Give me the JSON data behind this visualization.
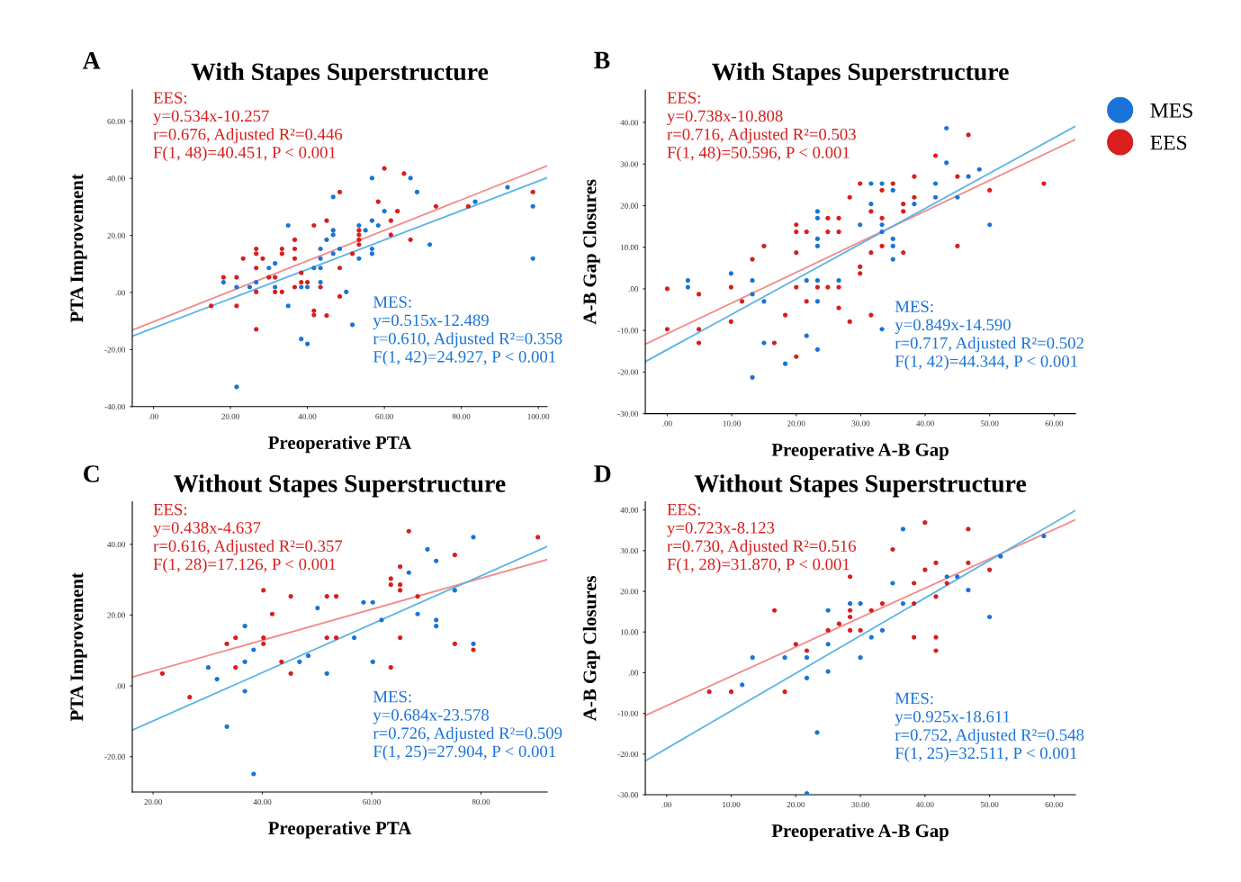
{
  "chart_data": [
    {
      "type": "scatter",
      "title": "With Stapes Superstructure",
      "xlabel": "Preoperative PTA",
      "ylabel": "PTA Improvement",
      "marker": "circle",
      "grid": false,
      "xlim": [
        -5.5,
        102.3
      ],
      "ylim": [
        -40,
        71
      ],
      "xticks": [
        {
          "value": 0,
          "label": ".00"
        },
        {
          "value": 20,
          "label": "20.00"
        },
        {
          "value": 40,
          "label": "40.00"
        },
        {
          "value": 60,
          "label": "60.00"
        },
        {
          "value": 80,
          "label": "80.00"
        },
        {
          "value": 100,
          "label": "100.00"
        }
      ],
      "yticks": [
        {
          "value": -40,
          "label": "-40.00"
        },
        {
          "value": -20,
          "label": "-20.00"
        },
        {
          "value": 0,
          "label": ".00"
        },
        {
          "value": 20,
          "label": "20.00"
        },
        {
          "value": 40,
          "label": "40.00"
        },
        {
          "value": 60,
          "label": "60.00"
        }
      ],
      "annotations": [
        "A",
        "EES:\ny=0.534x-10.257\nr=0.676, Adjusted R²=0.446\nF(1, 48)=40.451, P < 0.001",
        "MES:\ny=0.515x-12.489\nr=0.610, Adjusted R²=0.358\nF(1, 42)=24.927, P < 0.001"
      ],
      "series": [
        {
          "color": "#d81e1e",
          "x": [
            15.0,
            18.2,
            21.6,
            21.6,
            23.3,
            26.7,
            26.7,
            26.7,
            26.7,
            26.7,
            28.4,
            30.0,
            31.6,
            31.6,
            33.4,
            33.4,
            33.4,
            36.7,
            36.7,
            36.7,
            36.7,
            38.4,
            38.4,
            40.0,
            41.7,
            41.7,
            41.7,
            43.4,
            45.0,
            45.0,
            48.4,
            48.4,
            48.4,
            51.7,
            53.4,
            53.4,
            53.4,
            53.4,
            58.4,
            60.0,
            61.7,
            61.7,
            63.4,
            65.1,
            66.8,
            73.4,
            81.8,
            98.6
          ],
          "values": [
            -4.7,
            5.3,
            5.3,
            -4.7,
            11.9,
            15.3,
            13.6,
            8.6,
            0.2,
            -12.9,
            11.9,
            5.3,
            5.3,
            0.2,
            15.3,
            13.6,
            0.2,
            18.5,
            15.3,
            11.9,
            1.9,
            6.9,
            3.6,
            3.6,
            23.5,
            -6.4,
            -7.9,
            1.9,
            25.2,
            -8.1,
            35.2,
            8.6,
            -1.4,
            13.6,
            21.8,
            20.2,
            18.5,
            16.8,
            31.8,
            43.5,
            25.2,
            20.2,
            28.5,
            41.7,
            18.5,
            30.2,
            30.2,
            35.2
          ]
        },
        {
          "color": "#1a73d9",
          "x": [
            18.2,
            21.6,
            25.0,
            26.7,
            30.0,
            31.6,
            31.6,
            35.0,
            35.0,
            38.4,
            38.4,
            40.0,
            40.0,
            41.7,
            43.4,
            43.4,
            43.4,
            43.4,
            45.0,
            46.7,
            46.7,
            46.7,
            46.7,
            48.4,
            50.1,
            51.7,
            53.4,
            53.4,
            55.1,
            56.8,
            56.8,
            56.8,
            56.8,
            58.4,
            60.0,
            66.8,
            68.5,
            71.8,
            83.6,
            92.0,
            98.6,
            98.6,
            21.6
          ],
          "values": [
            3.6,
            1.9,
            1.9,
            3.6,
            8.6,
            10.2,
            1.9,
            23.5,
            -4.7,
            1.9,
            -16.3,
            1.9,
            -18.0,
            8.6,
            15.3,
            11.9,
            8.6,
            3.6,
            18.5,
            33.5,
            21.8,
            20.2,
            13.6,
            15.3,
            0.2,
            -11.3,
            23.5,
            11.9,
            21.8,
            40.1,
            25.2,
            15.3,
            13.6,
            23.5,
            28.5,
            40.1,
            35.2,
            16.8,
            31.8,
            36.9,
            30.2,
            11.9,
            -33.1
          ]
        },
        {
          "type": "line",
          "marker": "none",
          "color": "#f28b8b",
          "x": [
            -5.5,
            102.3
          ],
          "values": [
            -13.2,
            44.4
          ]
        },
        {
          "type": "line",
          "marker": "none",
          "color": "#5ab4e6",
          "x": [
            -5.5,
            102.3
          ],
          "values": [
            -15.3,
            40.2
          ]
        }
      ]
    },
    {
      "type": "scatter",
      "title": "With Stapes Superstructure",
      "xlabel": "Preoperative A-B Gap",
      "ylabel": "A-B Gap Closures",
      "marker": "circle",
      "grid": false,
      "legend": "right",
      "xlim": [
        -3.4,
        63.3
      ],
      "ylim": [
        -30,
        47.8
      ],
      "xticks": [
        {
          "value": 0,
          "label": ".00"
        },
        {
          "value": 10,
          "label": "10.00"
        },
        {
          "value": 20,
          "label": "20.00"
        },
        {
          "value": 30,
          "label": "30.00"
        },
        {
          "value": 40,
          "label": "40.00"
        },
        {
          "value": 50,
          "label": "50.00"
        },
        {
          "value": 60,
          "label": "60.00"
        }
      ],
      "yticks": [
        {
          "value": -30,
          "label": "-30.00"
        },
        {
          "value": -20,
          "label": "-20.00"
        },
        {
          "value": -10,
          "label": "-10.00"
        },
        {
          "value": 0,
          "label": ".00"
        },
        {
          "value": 10,
          "label": "10.00"
        },
        {
          "value": 20,
          "label": "20.00"
        },
        {
          "value": 30,
          "label": "30.00"
        },
        {
          "value": 40,
          "label": "40.00"
        }
      ],
      "annotations": [
        "B",
        "EES:\ny=0.738x-10.808\nr=0.716, Adjusted R²=0.503\nF(1, 48)=50.596, P < 0.001",
        "MES:\ny=0.849x-14.590\nr=0.717, Adjusted R²=0.502\nF(1, 42)=44.344, P < 0.001"
      ],
      "series": [
        {
          "name": "EES",
          "color": "#d81e1e",
          "x": [
            0,
            0,
            4.9,
            4.9,
            4.9,
            9.9,
            9.9,
            11.6,
            13.2,
            15.0,
            16.6,
            18.3,
            20.0,
            20.0,
            20.0,
            20.0,
            20.0,
            21.6,
            21.6,
            23.3,
            24.9,
            24.9,
            24.9,
            26.6,
            26.6,
            26.6,
            26.6,
            28.3,
            28.3,
            29.9,
            29.9,
            29.9,
            31.6,
            31.6,
            31.6,
            33.3,
            33.3,
            33.3,
            35.0,
            36.6,
            36.6,
            36.6,
            38.3,
            38.3,
            41.6,
            45.0,
            45.0,
            46.7,
            50.0,
            58.4
          ],
          "values": [
            0,
            -9.7,
            -1.3,
            -9.7,
            -13.0,
            0.4,
            -7.9,
            -3.0,
            7.1,
            10.3,
            -13.0,
            -6.3,
            15.4,
            13.7,
            8.7,
            0.4,
            -16.3,
            13.7,
            -3.0,
            0.4,
            17.0,
            13.7,
            0.4,
            17.0,
            13.7,
            0.4,
            -4.6,
            22.0,
            -7.9,
            25.3,
            5.3,
            3.7,
            18.6,
            8.7,
            -6.3,
            23.7,
            17.0,
            10.3,
            25.3,
            20.4,
            18.6,
            8.7,
            27.0,
            22.0,
            32.0,
            27.0,
            10.3,
            37.0,
            23.7,
            25.3
          ]
        },
        {
          "name": "MES",
          "color": "#1a73d9",
          "x": [
            3.2,
            3.2,
            9.9,
            13.2,
            13.2,
            13.2,
            15.0,
            15.0,
            18.3,
            21.6,
            21.6,
            23.3,
            23.3,
            23.3,
            23.3,
            23.3,
            23.3,
            23.3,
            26.6,
            29.9,
            31.6,
            31.6,
            33.3,
            33.3,
            33.3,
            33.3,
            35.0,
            35.0,
            35.0,
            35.0,
            38.3,
            41.6,
            41.6,
            43.3,
            43.3,
            45.0,
            46.7,
            48.4,
            50.0
          ],
          "values": [
            2.0,
            0.4,
            3.7,
            2.0,
            -1.3,
            -21.3,
            -3.0,
            -13.0,
            -18.0,
            2.0,
            -11.3,
            18.6,
            17.0,
            12.0,
            10.3,
            2.0,
            -3.0,
            -14.6,
            2.0,
            15.4,
            25.3,
            20.4,
            25.3,
            15.4,
            13.7,
            -9.7,
            23.7,
            12.0,
            10.3,
            7.1,
            20.4,
            25.3,
            22.0,
            38.6,
            30.3,
            22.0,
            27.0,
            28.7,
            15.4
          ]
        },
        {
          "type": "line",
          "marker": "none",
          "color": "#f28b8b",
          "x": [
            -3.4,
            63.3
          ],
          "values": [
            -13.3,
            35.9
          ]
        },
        {
          "type": "line",
          "marker": "none",
          "color": "#5ab4e6",
          "x": [
            -3.4,
            63.3
          ],
          "values": [
            -17.5,
            39.1
          ]
        }
      ]
    },
    {
      "type": "scatter",
      "title": "Without Stapes Superstructure",
      "xlabel": "Preoperative PTA",
      "ylabel": "PTA Improvement",
      "marker": "circle",
      "grid": false,
      "xlim": [
        16.2,
        92.1
      ],
      "ylim": [
        -30,
        52
      ],
      "xticks": [
        {
          "value": 20,
          "label": "20.00"
        },
        {
          "value": 40,
          "label": "40.00"
        },
        {
          "value": 60,
          "label": "60.00"
        },
        {
          "value": 80,
          "label": "80.00"
        }
      ],
      "yticks": [
        {
          "value": -20,
          "label": "-20.00"
        },
        {
          "value": 0,
          "label": ".00"
        },
        {
          "value": 20,
          "label": "20.00"
        },
        {
          "value": 40,
          "label": "40.00"
        }
      ],
      "annotations": [
        "C",
        "EES:\ny=0.438x-4.637\nr=0.616, Adjusted R²=0.357\nF(1, 28)=17.126, P < 0.001",
        "MES:\ny=0.684x-23.578\nr=0.726, Adjusted R²=0.509\nF(1, 25)=27.904, P < 0.001"
      ],
      "series": [
        {
          "color": "#d81e1e",
          "x": [
            21.7,
            26.7,
            33.5,
            35.1,
            35.1,
            40.2,
            40.2,
            40.2,
            41.8,
            43.5,
            45.2,
            45.2,
            51.8,
            51.8,
            53.5,
            53.5,
            63.5,
            63.5,
            63.5,
            65.2,
            65.2,
            65.2,
            65.2,
            66.8,
            68.4,
            75.2,
            75.2,
            78.6,
            90.4
          ],
          "values": [
            3.5,
            -3.2,
            11.9,
            13.6,
            5.2,
            27.0,
            13.6,
            11.9,
            20.3,
            6.8,
            25.3,
            3.5,
            25.3,
            13.6,
            25.3,
            13.6,
            30.3,
            28.6,
            5.2,
            33.7,
            28.6,
            27.0,
            13.6,
            43.7,
            25.3,
            37.0,
            11.9,
            10.2,
            42.0
          ]
        },
        {
          "color": "#1a73d9",
          "x": [
            30.1,
            31.7,
            33.5,
            36.8,
            36.8,
            36.8,
            38.4,
            38.4,
            46.8,
            48.4,
            50.1,
            51.8,
            56.8,
            58.5,
            60.2,
            60.2,
            61.8,
            66.8,
            68.4,
            70.2,
            71.8,
            71.8,
            71.8,
            75.2,
            78.6,
            78.6
          ],
          "values": [
            5.2,
            1.9,
            -11.5,
            16.9,
            6.8,
            -1.5,
            10.2,
            -24.9,
            6.8,
            8.5,
            22.0,
            3.5,
            13.6,
            23.6,
            23.6,
            6.8,
            18.6,
            32.0,
            20.3,
            38.6,
            35.3,
            18.6,
            16.9,
            27.0,
            42.0,
            11.9
          ]
        },
        {
          "type": "line",
          "marker": "none",
          "color": "#f28b8b",
          "x": [
            16.2,
            92.1
          ],
          "values": [
            2.5,
            35.7
          ]
        },
        {
          "type": "line",
          "marker": "none",
          "color": "#5ab4e6",
          "x": [
            16.2,
            92.1
          ],
          "values": [
            -12.5,
            39.4
          ]
        }
      ]
    },
    {
      "type": "scatter",
      "title": "Without Stapes Superstructure",
      "xlabel": "Preoperative A-B Gap",
      "ylabel": "A-B Gap Closures",
      "marker": "circle",
      "grid": false,
      "xlim": [
        -3.3,
        63.3
      ],
      "ylim": [
        -30,
        42
      ],
      "xticks": [
        {
          "value": 0,
          "label": ".00"
        },
        {
          "value": 10,
          "label": "10.00"
        },
        {
          "value": 20,
          "label": "20.00"
        },
        {
          "value": 30,
          "label": "30.00"
        },
        {
          "value": 40,
          "label": "40.00"
        },
        {
          "value": 50,
          "label": "50.00"
        },
        {
          "value": 60,
          "label": "60.00"
        }
      ],
      "yticks": [
        {
          "value": -30,
          "label": "-30.00"
        },
        {
          "value": -20,
          "label": "-20.00"
        },
        {
          "value": -10,
          "label": "-10.00"
        },
        {
          "value": 0,
          "label": ".00"
        },
        {
          "value": 10,
          "label": "10.00"
        },
        {
          "value": 20,
          "label": "20.00"
        },
        {
          "value": 30,
          "label": "30.00"
        },
        {
          "value": 40,
          "label": "40.00"
        }
      ],
      "annotations": [
        "D",
        "EES:\ny=0.723x-8.123\nr=0.730, Adjusted R²=0.516\nF(1, 28)=31.870, P < 0.001",
        "MES:\ny=0.925x-18.611\nr=0.752, Adjusted R²=0.548\nF(1, 25)=32.511, P < 0.001"
      ],
      "series": [
        {
          "color": "#d81e1e",
          "x": [
            6.6,
            10.0,
            16.7,
            18.3,
            20.0,
            21.7,
            25.0,
            26.7,
            28.4,
            28.4,
            28.4,
            28.4,
            30.0,
            31.7,
            33.4,
            35.0,
            38.3,
            38.3,
            38.3,
            40.0,
            40.0,
            41.7,
            41.7,
            41.7,
            41.7,
            43.4,
            46.7,
            46.7,
            50.0
          ],
          "values": [
            -4.7,
            -4.7,
            15.3,
            -4.7,
            7.0,
            5.4,
            10.4,
            12.0,
            23.6,
            15.3,
            13.7,
            10.4,
            10.4,
            15.3,
            17.0,
            30.3,
            22.0,
            17.0,
            8.7,
            36.9,
            25.3,
            27.0,
            18.7,
            8.7,
            5.4,
            22.0,
            35.3,
            27.0,
            25.3
          ]
        },
        {
          "color": "#1a73d9",
          "x": [
            11.7,
            13.3,
            18.3,
            21.7,
            21.7,
            21.7,
            23.3,
            25.0,
            25.0,
            25.0,
            28.4,
            30.0,
            30.0,
            31.7,
            33.4,
            35.0,
            36.6,
            36.6,
            43.4,
            45.0,
            46.7,
            50.0,
            51.7,
            58.4
          ],
          "values": [
            -3.0,
            3.7,
            3.7,
            3.7,
            -1.3,
            -29.7,
            -14.7,
            15.3,
            7.0,
            0.3,
            17.0,
            17.0,
            3.7,
            8.7,
            10.4,
            22.0,
            35.3,
            17.0,
            23.6,
            23.6,
            20.3,
            13.7,
            28.6,
            33.6
          ]
        },
        {
          "type": "line",
          "marker": "none",
          "color": "#f28b8b",
          "x": [
            -3.3,
            63.3
          ],
          "values": [
            -10.5,
            37.6
          ]
        },
        {
          "type": "line",
          "marker": "none",
          "color": "#5ab4e6",
          "x": [
            -3.3,
            63.3
          ],
          "values": [
            -21.7,
            39.9
          ]
        }
      ]
    }
  ]
}
